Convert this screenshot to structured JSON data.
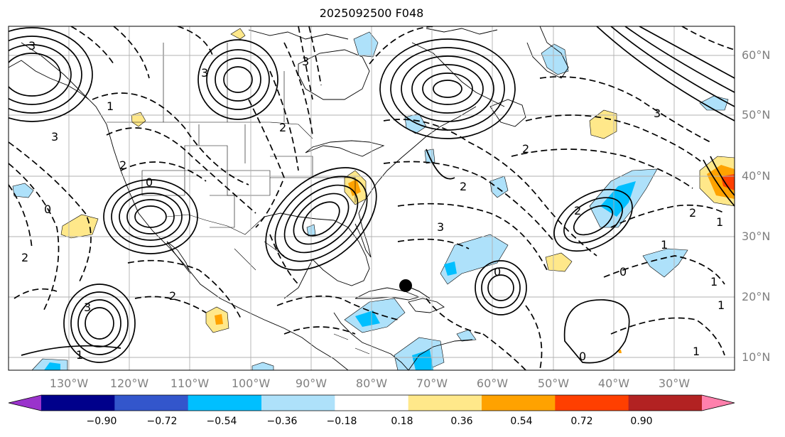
{
  "title": "2025092500 F048",
  "lat_labels": [
    "60°N",
    "50°N",
    "40°N",
    "30°N",
    "20°N",
    "10°N"
  ],
  "lon_labels": [
    "130°W",
    "120°W",
    "110°W",
    "100°W",
    "90°W",
    "80°W",
    "70°W",
    "60°W",
    "50°W",
    "40°W",
    "30°W"
  ],
  "colorbar": {
    "colors": [
      "#9a33cc",
      "#00008b",
      "#3356cc",
      "#00bfff",
      "#aee1fa",
      "#ffffff",
      "#ffe88a",
      "#ffa200",
      "#ff3f00",
      "#b22222",
      "#ff80ac"
    ],
    "under_color": "#9a33cc",
    "over_color": "#ff80ac",
    "tick_labels": [
      "−0.90",
      "−0.72",
      "−0.54",
      "−0.36",
      "−0.18",
      "0.18",
      "0.36",
      "0.54",
      "0.72",
      "0.90"
    ]
  },
  "contour_labels": {
    "solid": [
      "3",
      "1",
      "3",
      "3",
      "3",
      "0",
      "0",
      "0",
      "1",
      "1",
      "1",
      "1",
      "2"
    ],
    "dashed": [
      "2",
      "2",
      "2",
      "2",
      "3",
      "3",
      "2",
      "0",
      "0",
      "1",
      "2",
      "1",
      "3",
      "2"
    ]
  },
  "colors": {
    "contour": "#000000",
    "coast": "#000000",
    "grid": "#b0b0b0",
    "tick_text": "#808080"
  }
}
